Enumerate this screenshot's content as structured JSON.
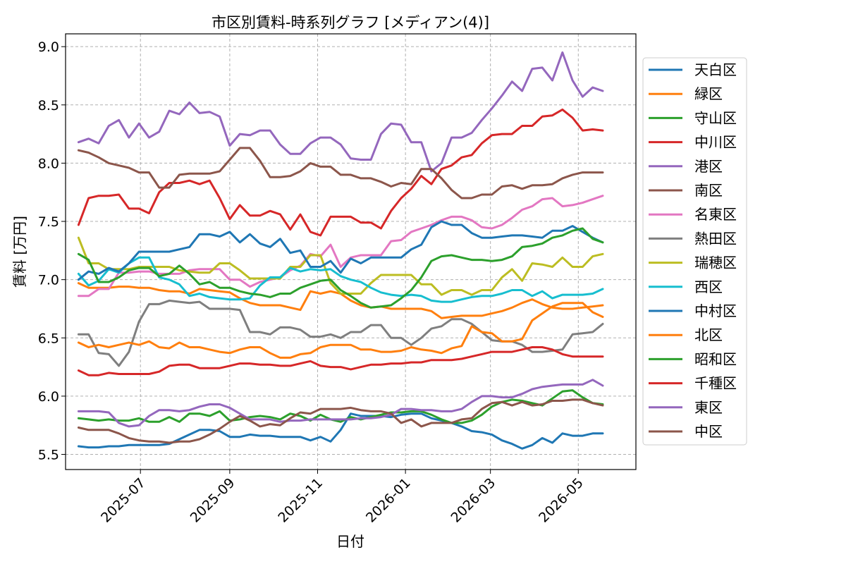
{
  "chart_data": {
    "type": "line",
    "title": "市区別賃料-時系列グラフ [メディアン(4)]",
    "xlabel": "日付",
    "ylabel": "賃料 [万円]",
    "x_ticks": [
      "2025-07",
      "2025-09",
      "2025-11",
      "2026-01",
      "2026-03",
      "2026-05"
    ],
    "x_tick_dates": [
      "2025-07-01",
      "2025-09-01",
      "2025-11-01",
      "2026-01-01",
      "2026-03-01",
      "2026-05-01"
    ],
    "y_ticks": [
      "5.5",
      "6.0",
      "6.5",
      "7.0",
      "7.5",
      "8.0",
      "8.5",
      "9.0"
    ],
    "ylim": [
      5.37,
      9.11
    ],
    "xlim": [
      "2025-05-10",
      "2026-06-10"
    ],
    "grid": true,
    "legend_position": "outside-right",
    "x_dates": [
      "2025-05-19",
      "2025-05-26",
      "2025-06-02",
      "2025-06-09",
      "2025-06-16",
      "2025-06-23",
      "2025-06-30",
      "2025-07-07",
      "2025-07-14",
      "2025-07-21",
      "2025-07-28",
      "2025-08-04",
      "2025-08-11",
      "2025-08-18",
      "2025-08-25",
      "2025-09-01",
      "2025-09-08",
      "2025-09-15",
      "2025-09-22",
      "2025-09-29",
      "2025-10-06",
      "2025-10-13",
      "2025-10-20",
      "2025-10-27",
      "2025-11-03",
      "2025-11-10",
      "2025-11-17",
      "2025-11-24",
      "2025-12-01",
      "2025-12-08",
      "2025-12-15",
      "2025-12-22",
      "2025-12-29",
      "2026-01-05",
      "2026-01-12",
      "2026-01-19",
      "2026-01-26",
      "2026-02-02",
      "2026-02-09",
      "2026-02-16",
      "2026-02-23",
      "2026-03-02",
      "2026-03-09",
      "2026-03-16",
      "2026-03-23",
      "2026-03-30",
      "2026-04-06",
      "2026-04-13",
      "2026-04-20",
      "2026-04-27",
      "2026-05-04",
      "2026-05-11",
      "2026-05-18"
    ],
    "series": [
      {
        "name": "天白区",
        "color": "#1f77b4",
        "values": [
          5.57,
          5.56,
          5.56,
          5.57,
          5.57,
          5.58,
          5.58,
          5.58,
          5.58,
          5.59,
          5.63,
          5.67,
          5.71,
          5.71,
          5.7,
          5.65,
          5.65,
          5.67,
          5.66,
          5.66,
          5.65,
          5.65,
          5.65,
          5.62,
          5.65,
          5.61,
          5.71,
          5.85,
          5.83,
          5.83,
          5.83,
          5.82,
          5.84,
          5.85,
          5.85,
          5.81,
          5.79,
          5.77,
          5.74,
          5.7,
          5.69,
          5.67,
          5.62,
          5.59,
          5.55,
          5.58,
          5.64,
          5.6,
          5.68,
          5.66,
          5.66,
          5.68,
          5.68
        ]
      },
      {
        "name": "緑区",
        "color": "#ff7f0e",
        "values": [
          6.97,
          6.93,
          6.93,
          6.93,
          6.94,
          6.94,
          6.93,
          6.93,
          6.91,
          6.9,
          6.9,
          6.88,
          6.92,
          6.91,
          6.9,
          6.89,
          6.84,
          6.8,
          6.78,
          6.78,
          6.78,
          6.76,
          6.74,
          6.9,
          6.88,
          6.9,
          6.88,
          6.82,
          6.78,
          6.76,
          6.77,
          6.75,
          6.75,
          6.75,
          6.75,
          6.73,
          6.67,
          6.68,
          6.69,
          6.69,
          6.69,
          6.71,
          6.73,
          6.76,
          6.8,
          6.83,
          6.79,
          6.76,
          6.75,
          6.75,
          6.76,
          6.77,
          6.78
        ]
      },
      {
        "name": "守山区",
        "color": "#2ca02c",
        "values": [
          5.81,
          5.8,
          5.79,
          5.8,
          5.79,
          5.79,
          5.81,
          5.78,
          5.78,
          5.82,
          5.78,
          5.85,
          5.85,
          5.83,
          5.87,
          5.79,
          5.8,
          5.82,
          5.83,
          5.82,
          5.8,
          5.85,
          5.83,
          5.79,
          5.84,
          5.8,
          5.78,
          5.82,
          5.8,
          5.82,
          5.84,
          5.86,
          5.86,
          5.87,
          5.87,
          5.84,
          5.8,
          5.77,
          5.77,
          5.79,
          5.84,
          5.91,
          5.95,
          5.97,
          5.96,
          5.94,
          5.92,
          5.98,
          6.04,
          6.05,
          5.99,
          5.94,
          5.93
        ]
      },
      {
        "name": "中川区",
        "color": "#d62728",
        "values": [
          7.47,
          7.7,
          7.72,
          7.72,
          7.73,
          7.61,
          7.61,
          7.57,
          7.75,
          7.83,
          7.83,
          7.85,
          7.82,
          7.85,
          7.7,
          7.52,
          7.64,
          7.55,
          7.55,
          7.59,
          7.56,
          7.43,
          7.56,
          7.41,
          7.38,
          7.54,
          7.54,
          7.54,
          7.49,
          7.49,
          7.44,
          7.59,
          7.7,
          7.78,
          7.89,
          7.82,
          7.95,
          7.98,
          8.05,
          8.07,
          8.17,
          8.24,
          8.25,
          8.25,
          8.32,
          8.32,
          8.4,
          8.41,
          8.46,
          8.39,
          8.28,
          8.29,
          8.28
        ]
      },
      {
        "name": "港区",
        "color": "#9467bd",
        "values": [
          8.18,
          8.21,
          8.17,
          8.32,
          8.37,
          8.22,
          8.34,
          8.22,
          8.27,
          8.45,
          8.42,
          8.52,
          8.43,
          8.44,
          8.4,
          8.15,
          8.25,
          8.24,
          8.28,
          8.28,
          8.16,
          8.08,
          8.08,
          8.17,
          8.22,
          8.22,
          8.16,
          8.04,
          8.03,
          8.03,
          8.25,
          8.34,
          8.33,
          8.18,
          8.18,
          7.93,
          8.0,
          8.22,
          8.22,
          8.26,
          8.37,
          8.47,
          8.58,
          8.7,
          8.62,
          8.81,
          8.82,
          8.71,
          8.95,
          8.71,
          8.57,
          8.65,
          8.62
        ]
      },
      {
        "name": "南区",
        "color": "#8c564b",
        "values": [
          8.11,
          8.09,
          8.05,
          8.0,
          7.98,
          7.96,
          7.92,
          7.92,
          7.79,
          7.79,
          7.9,
          7.91,
          7.91,
          7.91,
          7.93,
          8.03,
          8.13,
          8.13,
          8.02,
          7.88,
          7.88,
          7.89,
          7.93,
          8.0,
          7.97,
          7.97,
          7.9,
          7.9,
          7.87,
          7.87,
          7.84,
          7.8,
          7.83,
          7.82,
          7.95,
          7.95,
          7.87,
          7.77,
          7.7,
          7.7,
          7.73,
          7.73,
          7.8,
          7.81,
          7.78,
          7.81,
          7.81,
          7.82,
          7.87,
          7.9,
          7.92,
          7.92,
          7.92
        ]
      },
      {
        "name": "名東区",
        "color": "#e377c2",
        "values": [
          6.86,
          6.86,
          6.92,
          6.92,
          7.06,
          7.06,
          7.07,
          7.07,
          7.05,
          7.05,
          7.05,
          7.08,
          7.09,
          7.09,
          7.09,
          7.0,
          7.0,
          6.94,
          6.98,
          7.0,
          7.02,
          7.08,
          7.12,
          7.22,
          7.2,
          7.3,
          7.11,
          7.19,
          7.21,
          7.21,
          7.21,
          7.33,
          7.34,
          7.41,
          7.44,
          7.47,
          7.51,
          7.54,
          7.54,
          7.51,
          7.45,
          7.44,
          7.47,
          7.53,
          7.6,
          7.63,
          7.69,
          7.7,
          7.63,
          7.64,
          7.66,
          7.69,
          7.72
        ]
      },
      {
        "name": "熱田区",
        "color": "#7f7f7f",
        "values": [
          6.53,
          6.53,
          6.37,
          6.36,
          6.26,
          6.38,
          6.64,
          6.79,
          6.79,
          6.82,
          6.81,
          6.8,
          6.81,
          6.75,
          6.75,
          6.75,
          6.74,
          6.55,
          6.55,
          6.53,
          6.59,
          6.59,
          6.57,
          6.51,
          6.51,
          6.53,
          6.5,
          6.55,
          6.55,
          6.61,
          6.61,
          6.5,
          6.5,
          6.44,
          6.5,
          6.58,
          6.6,
          6.66,
          6.66,
          6.62,
          6.55,
          6.48,
          6.47,
          6.47,
          6.44,
          6.38,
          6.38,
          6.39,
          6.4,
          6.53,
          6.54,
          6.55,
          6.62
        ]
      },
      {
        "name": "瑞穂区",
        "color": "#bcbd22",
        "values": [
          7.36,
          7.14,
          7.14,
          7.09,
          7.09,
          7.09,
          7.11,
          7.11,
          7.11,
          7.11,
          7.08,
          7.07,
          7.06,
          7.06,
          7.14,
          7.14,
          7.08,
          7.01,
          7.01,
          7.01,
          7.01,
          7.11,
          7.11,
          7.21,
          7.21,
          6.97,
          6.88,
          6.88,
          6.88,
          6.97,
          7.04,
          7.04,
          7.04,
          7.04,
          6.96,
          6.96,
          6.87,
          6.91,
          6.91,
          6.87,
          6.91,
          6.91,
          7.02,
          7.09,
          6.99,
          7.14,
          7.13,
          7.11,
          7.19,
          7.11,
          7.11,
          7.2,
          7.22
        ]
      },
      {
        "name": "西区",
        "color": "#17becf",
        "values": [
          7.05,
          6.95,
          6.99,
          7.09,
          7.06,
          7.14,
          7.19,
          7.19,
          7.02,
          7.0,
          6.96,
          6.86,
          6.88,
          6.85,
          6.84,
          6.83,
          6.83,
          6.84,
          6.95,
          7.02,
          7.02,
          7.1,
          7.07,
          7.09,
          7.08,
          7.09,
          7.03,
          7.0,
          6.98,
          6.93,
          6.89,
          6.87,
          6.86,
          6.87,
          6.86,
          6.82,
          6.81,
          6.81,
          6.83,
          6.85,
          6.86,
          6.86,
          6.88,
          6.91,
          6.91,
          6.86,
          6.9,
          6.84,
          6.87,
          6.87,
          6.87,
          6.88,
          6.92
        ]
      },
      {
        "name": "中村区",
        "color": "#1f77b4",
        "values": [
          7.0,
          7.07,
          7.05,
          7.1,
          7.07,
          7.14,
          7.24,
          7.24,
          7.24,
          7.24,
          7.26,
          7.28,
          7.39,
          7.39,
          7.37,
          7.41,
          7.32,
          7.39,
          7.31,
          7.28,
          7.35,
          7.23,
          7.25,
          7.11,
          7.11,
          7.16,
          7.06,
          7.18,
          7.14,
          7.19,
          7.19,
          7.19,
          7.19,
          7.26,
          7.3,
          7.45,
          7.5,
          7.47,
          7.47,
          7.4,
          7.36,
          7.36,
          7.37,
          7.38,
          7.38,
          7.37,
          7.36,
          7.42,
          7.42,
          7.46,
          7.41,
          7.36,
          7.32
        ]
      },
      {
        "name": "北区",
        "color": "#ff7f0e",
        "values": [
          6.46,
          6.42,
          6.44,
          6.42,
          6.44,
          6.46,
          6.44,
          6.47,
          6.42,
          6.41,
          6.46,
          6.42,
          6.42,
          6.4,
          6.38,
          6.37,
          6.4,
          6.42,
          6.42,
          6.37,
          6.33,
          6.33,
          6.36,
          6.37,
          6.42,
          6.44,
          6.44,
          6.44,
          6.4,
          6.4,
          6.38,
          6.38,
          6.39,
          6.42,
          6.4,
          6.39,
          6.37,
          6.41,
          6.43,
          6.6,
          6.55,
          6.54,
          6.47,
          6.47,
          6.49,
          6.65,
          6.71,
          6.77,
          6.8,
          6.8,
          6.8,
          6.72,
          6.68
        ]
      },
      {
        "name": "昭和区",
        "color": "#2ca02c",
        "values": [
          7.22,
          7.17,
          6.98,
          6.98,
          7.02,
          7.08,
          7.1,
          7.1,
          7.03,
          7.05,
          7.12,
          7.05,
          6.96,
          6.98,
          6.93,
          6.93,
          6.9,
          6.88,
          6.87,
          6.85,
          6.88,
          6.88,
          6.93,
          6.96,
          6.99,
          7.0,
          6.91,
          6.86,
          6.8,
          6.76,
          6.77,
          6.78,
          6.84,
          6.91,
          7.02,
          7.16,
          7.2,
          7.21,
          7.19,
          7.17,
          7.17,
          7.16,
          7.17,
          7.2,
          7.28,
          7.29,
          7.31,
          7.36,
          7.38,
          7.42,
          7.44,
          7.35,
          7.32
        ]
      },
      {
        "name": "千種区",
        "color": "#d62728",
        "values": [
          6.22,
          6.18,
          6.18,
          6.2,
          6.19,
          6.19,
          6.19,
          6.19,
          6.21,
          6.26,
          6.27,
          6.27,
          6.24,
          6.24,
          6.24,
          6.26,
          6.28,
          6.28,
          6.27,
          6.27,
          6.26,
          6.26,
          6.28,
          6.3,
          6.26,
          6.25,
          6.25,
          6.23,
          6.25,
          6.27,
          6.27,
          6.28,
          6.28,
          6.29,
          6.29,
          6.31,
          6.31,
          6.31,
          6.32,
          6.34,
          6.36,
          6.38,
          6.38,
          6.38,
          6.4,
          6.42,
          6.42,
          6.4,
          6.36,
          6.34,
          6.34,
          6.34,
          6.34
        ]
      },
      {
        "name": "東区",
        "color": "#9467bd",
        "values": [
          5.87,
          5.87,
          5.87,
          5.86,
          5.77,
          5.74,
          5.75,
          5.83,
          5.88,
          5.88,
          5.87,
          5.88,
          5.91,
          5.93,
          5.93,
          5.9,
          5.85,
          5.8,
          5.8,
          5.8,
          5.78,
          5.79,
          5.79,
          5.8,
          5.8,
          5.8,
          5.8,
          5.8,
          5.81,
          5.81,
          5.82,
          5.84,
          5.89,
          5.89,
          5.88,
          5.88,
          5.87,
          5.87,
          5.89,
          5.95,
          6.0,
          6.0,
          5.99,
          5.99,
          6.02,
          6.06,
          6.08,
          6.09,
          6.1,
          6.1,
          6.1,
          6.14,
          6.09
        ]
      },
      {
        "name": "中区",
        "color": "#8c564b",
        "values": [
          5.73,
          5.71,
          5.71,
          5.71,
          5.68,
          5.64,
          5.62,
          5.61,
          5.61,
          5.6,
          5.61,
          5.61,
          5.63,
          5.67,
          5.72,
          5.78,
          5.83,
          5.79,
          5.74,
          5.76,
          5.75,
          5.81,
          5.86,
          5.85,
          5.89,
          5.89,
          5.89,
          5.9,
          5.88,
          5.87,
          5.87,
          5.85,
          5.77,
          5.8,
          5.74,
          5.77,
          5.77,
          5.77,
          5.8,
          5.81,
          5.89,
          5.94,
          5.95,
          5.92,
          5.95,
          5.92,
          5.93,
          5.96,
          5.96,
          5.97,
          5.97,
          5.94,
          5.92
        ]
      }
    ]
  }
}
